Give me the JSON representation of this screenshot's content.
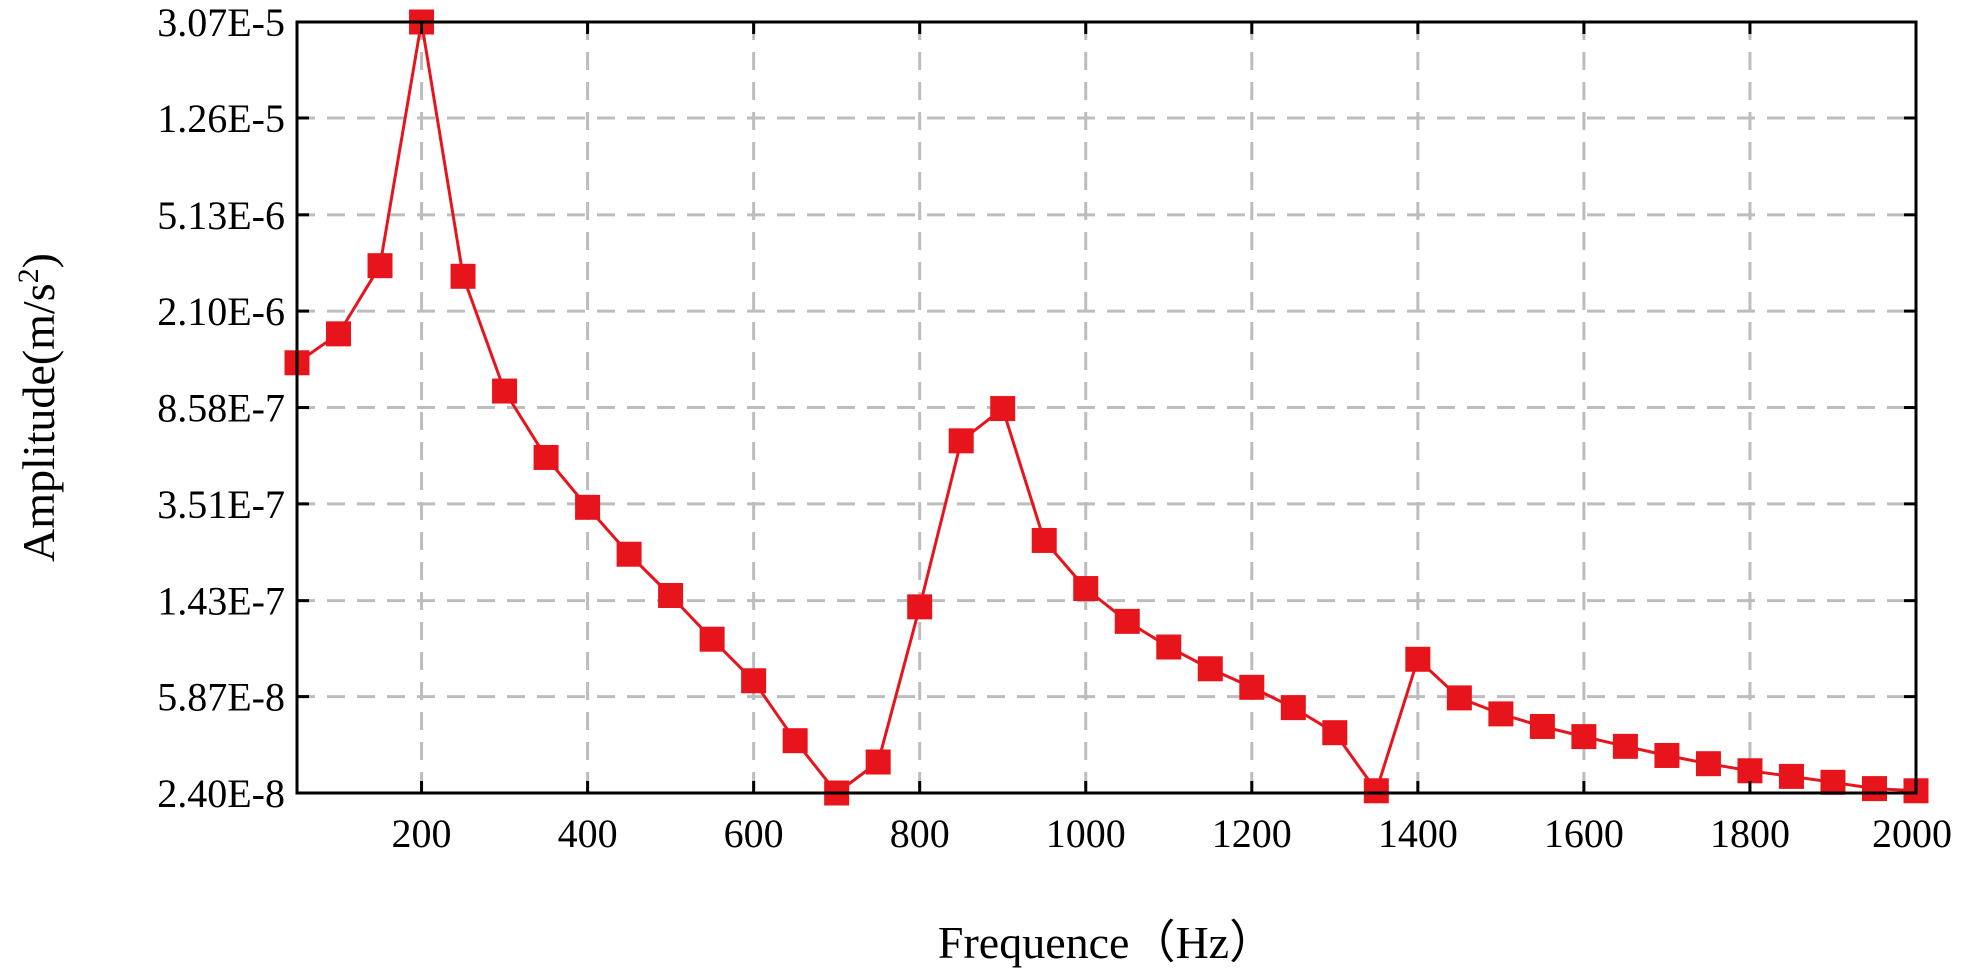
{
  "chart_data": {
    "type": "line",
    "title": "",
    "xlabel": "Frequence（Hz）",
    "ylabel": "Amplitude(m/s²)",
    "ylabel_base": "Amplitude(m/s",
    "ylabel_sup": "2",
    "ylabel_close": ")",
    "y_scale": "log",
    "grid": true,
    "legend": "none",
    "xlim": [
      50,
      2000
    ],
    "ylim": [
      2.4e-08,
      3.07e-05
    ],
    "x_ticks": [
      200,
      400,
      600,
      800,
      1000,
      1200,
      1400,
      1600,
      1800,
      2000
    ],
    "x_tick_labels": [
      "200",
      "400",
      "600",
      "800",
      "1000",
      "1200",
      "1400",
      "1600",
      "1800",
      "2000"
    ],
    "y_ticks": [
      3.07e-05,
      1.26e-05,
      5.13e-06,
      2.1e-06,
      8.58e-07,
      3.51e-07,
      1.43e-07,
      5.87e-08,
      2.4e-08
    ],
    "y_tick_labels": [
      "3.07E-5",
      "1.26E-5",
      "5.13E-6",
      "2.10E-6",
      "8.58E-7",
      "3.51E-7",
      "1.43E-7",
      "5.87E-8",
      "2.40E-8"
    ],
    "series": [
      {
        "color": "#e8141c",
        "marker": "square",
        "x": [
          50,
          100,
          150,
          200,
          250,
          300,
          350,
          400,
          450,
          500,
          550,
          600,
          650,
          700,
          750,
          800,
          850,
          900,
          950,
          1000,
          1050,
          1100,
          1150,
          1200,
          1250,
          1300,
          1350,
          1400,
          1450,
          1500,
          1550,
          1600,
          1650,
          1700,
          1750,
          1800,
          1850,
          1900,
          1950,
          2000
        ],
        "y": [
          1.3e-06,
          1.7e-06,
          3.2e-06,
          3.07e-05,
          2.9e-06,
          1e-06,
          5.4e-07,
          3.4e-07,
          2.2e-07,
          1.5e-07,
          1e-07,
          6.8e-08,
          3.9e-08,
          2.4e-08,
          3.2e-08,
          1.35e-07,
          6.3e-07,
          8.5e-07,
          2.5e-07,
          1.6e-07,
          1.18e-07,
          9.3e-08,
          7.6e-08,
          6.4e-08,
          5.3e-08,
          4.2e-08,
          2.45e-08,
          8.3e-08,
          5.8e-08,
          5e-08,
          4.45e-08,
          4.05e-08,
          3.7e-08,
          3.4e-08,
          3.15e-08,
          2.95e-08,
          2.8e-08,
          2.65e-08,
          2.5e-08,
          2.45e-08
        ]
      }
    ]
  }
}
